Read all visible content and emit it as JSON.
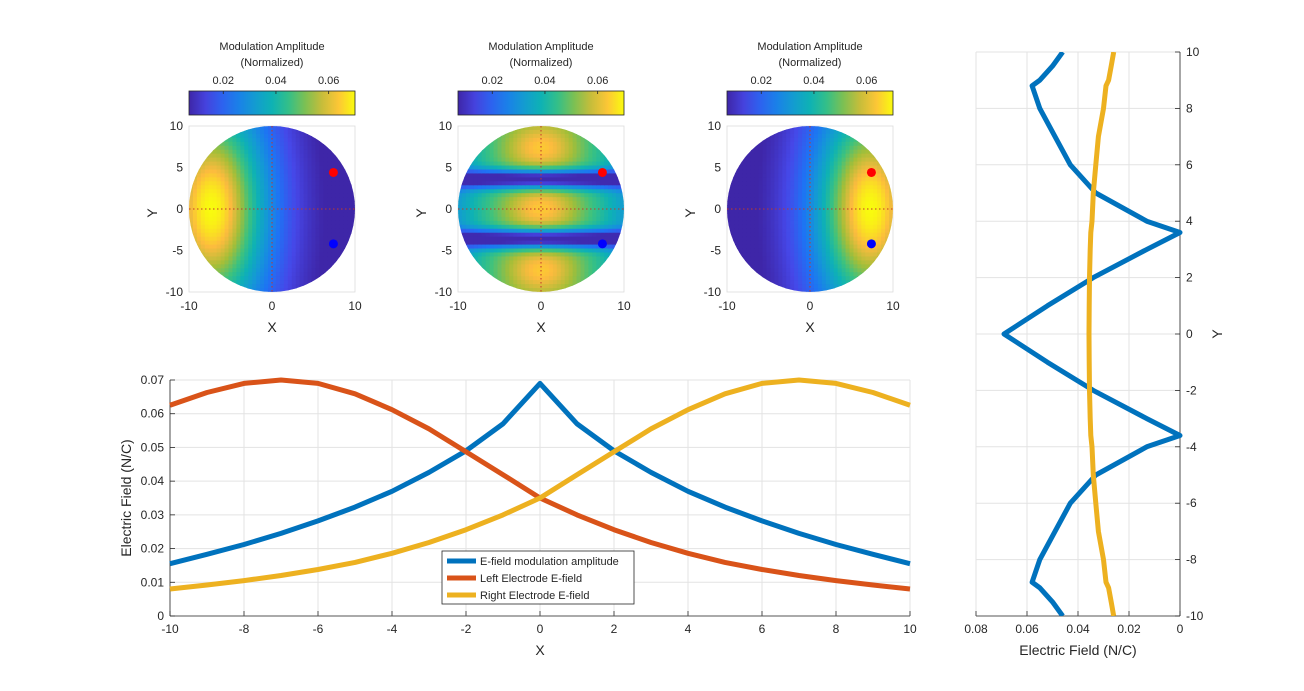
{
  "chart_data": [
    {
      "type": "heatmap",
      "colorbar": {
        "title_line1": "Modulation Amplitude",
        "title_line2": "(Normalized)",
        "ticks": [
          "0.02",
          "0.04",
          "0.06"
        ],
        "range": [
          0.007,
          0.07
        ]
      },
      "xlabel": "X",
      "ylabel": "Y",
      "xlim": [
        -10,
        10
      ],
      "ylim": [
        -10,
        10
      ],
      "xticks": [
        "-10",
        "0",
        "10"
      ],
      "yticks": [
        "10",
        "5",
        "0",
        "-5",
        "-10"
      ],
      "pattern": "left-electrode field: bright on left (~0.065), dark on right (~0.01)",
      "electrodes": [
        {
          "x": 7.4,
          "y": 4.4,
          "color": "#ff0000"
        },
        {
          "x": 7.4,
          "y": -4.2,
          "color": "#0000ff"
        }
      ]
    },
    {
      "type": "heatmap",
      "colorbar": {
        "title_line1": "Modulation Amplitude",
        "title_line2": "(Normalized)",
        "ticks": [
          "0.02",
          "0.04",
          "0.06"
        ],
        "range": [
          0.007,
          0.07
        ]
      },
      "xlabel": "X",
      "ylabel": "Y",
      "xlim": [
        -10,
        10
      ],
      "ylim": [
        -10,
        10
      ],
      "xticks": [
        "-10",
        "0",
        "10"
      ],
      "yticks": [
        "10",
        "5",
        "0",
        "-5",
        "-10"
      ],
      "pattern": "modulation amplitude: dark bands near y = ±3.6, bright spots along x = 0",
      "electrodes": [
        {
          "x": 7.4,
          "y": 4.4,
          "color": "#ff0000"
        },
        {
          "x": 7.4,
          "y": -4.2,
          "color": "#0000ff"
        }
      ]
    },
    {
      "type": "heatmap",
      "colorbar": {
        "title_line1": "Modulation Amplitude",
        "title_line2": "(Normalized)",
        "ticks": [
          "0.02",
          "0.04",
          "0.06"
        ],
        "range": [
          0.007,
          0.07
        ]
      },
      "xlabel": "X",
      "ylabel": "Y",
      "xlim": [
        -10,
        10
      ],
      "ylim": [
        -10,
        10
      ],
      "xticks": [
        "-10",
        "0",
        "10"
      ],
      "yticks": [
        "10",
        "5",
        "0",
        "-5",
        "-10"
      ],
      "pattern": "right-electrode field: dark on left (~0.01), bright on right (~0.065)",
      "electrodes": [
        {
          "x": 7.4,
          "y": 4.4,
          "color": "#ff0000"
        },
        {
          "x": 7.4,
          "y": -4.2,
          "color": "#0000ff"
        }
      ]
    },
    {
      "type": "line",
      "xlabel": "X",
      "ylabel": "Electric Field (N/C)",
      "xlim": [
        -10,
        10
      ],
      "ylim": [
        0,
        0.07
      ],
      "xticks": [
        "-10",
        "-8",
        "-6",
        "-4",
        "-2",
        "0",
        "2",
        "4",
        "6",
        "8",
        "10"
      ],
      "yticks": [
        "0",
        "0.01",
        "0.02",
        "0.03",
        "0.04",
        "0.05",
        "0.06",
        "0.07"
      ],
      "grid": true,
      "legend_position": "bottom-center",
      "x": [
        -10,
        -9,
        -8,
        -7,
        -6,
        -5,
        -4,
        -3,
        -2,
        -1,
        0,
        1,
        2,
        3,
        4,
        5,
        6,
        7,
        8,
        9,
        10
      ],
      "series": [
        {
          "name": "E-field modulation amplitude",
          "color": "#0072bd",
          "values": [
            0.0155,
            0.0183,
            0.0212,
            0.0245,
            0.0282,
            0.0323,
            0.037,
            0.0426,
            0.049,
            0.057,
            0.069,
            0.057,
            0.049,
            0.0426,
            0.037,
            0.0323,
            0.0282,
            0.0245,
            0.0212,
            0.0183,
            0.0155
          ]
        },
        {
          "name": "Left Electrode E-field",
          "color": "#d95319",
          "values": [
            0.0625,
            0.0663,
            0.069,
            0.07,
            0.069,
            0.0659,
            0.0612,
            0.0555,
            0.0487,
            0.0419,
            0.035,
            0.03,
            0.0256,
            0.0218,
            0.0186,
            0.0159,
            0.0138,
            0.012,
            0.0105,
            0.0092,
            0.008
          ]
        },
        {
          "name": "Right Electrode E-field",
          "color": "#edb120",
          "values": [
            0.008,
            0.0092,
            0.0105,
            0.012,
            0.0138,
            0.0159,
            0.0186,
            0.0218,
            0.0256,
            0.03,
            0.035,
            0.0419,
            0.0487,
            0.0555,
            0.0612,
            0.0659,
            0.069,
            0.07,
            0.069,
            0.0663,
            0.0625
          ]
        }
      ]
    },
    {
      "type": "line",
      "xlabel": "Electric Field (N/C)",
      "ylabel": "Y",
      "xlim": [
        0.08,
        0
      ],
      "ylim": [
        -10,
        10
      ],
      "xticks": [
        "0.08",
        "0.06",
        "0.04",
        "0.02",
        "0"
      ],
      "yticks": [
        "10",
        "8",
        "6",
        "4",
        "2",
        "0",
        "-2",
        "-4",
        "-6",
        "-8",
        "-10"
      ],
      "grid": true,
      "y": [
        -10,
        -9.5,
        -9,
        -8.8,
        -8,
        -7,
        -6,
        -5,
        -4,
        -3.6,
        -3,
        -2,
        -1,
        0,
        1,
        2,
        3,
        3.6,
        4,
        5,
        6,
        7,
        8,
        8.8,
        9,
        9.5,
        10
      ],
      "series": [
        {
          "color": "#0072bd",
          "values": [
            0.046,
            0.05,
            0.055,
            0.058,
            0.055,
            0.049,
            0.043,
            0.033,
            0.013,
            0.0,
            0.013,
            0.034,
            0.052,
            0.069,
            0.052,
            0.034,
            0.013,
            0.0,
            0.013,
            0.033,
            0.043,
            0.049,
            0.055,
            0.058,
            0.055,
            0.05,
            0.046
          ]
        },
        {
          "color": "#edb120",
          "values": [
            0.026,
            0.027,
            0.028,
            0.029,
            0.03,
            0.032,
            0.033,
            0.034,
            0.0345,
            0.035,
            0.0352,
            0.0355,
            0.0356,
            0.0357,
            0.0356,
            0.0355,
            0.0352,
            0.035,
            0.0345,
            0.034,
            0.033,
            0.032,
            0.03,
            0.029,
            0.028,
            0.027,
            0.026
          ]
        }
      ]
    }
  ]
}
